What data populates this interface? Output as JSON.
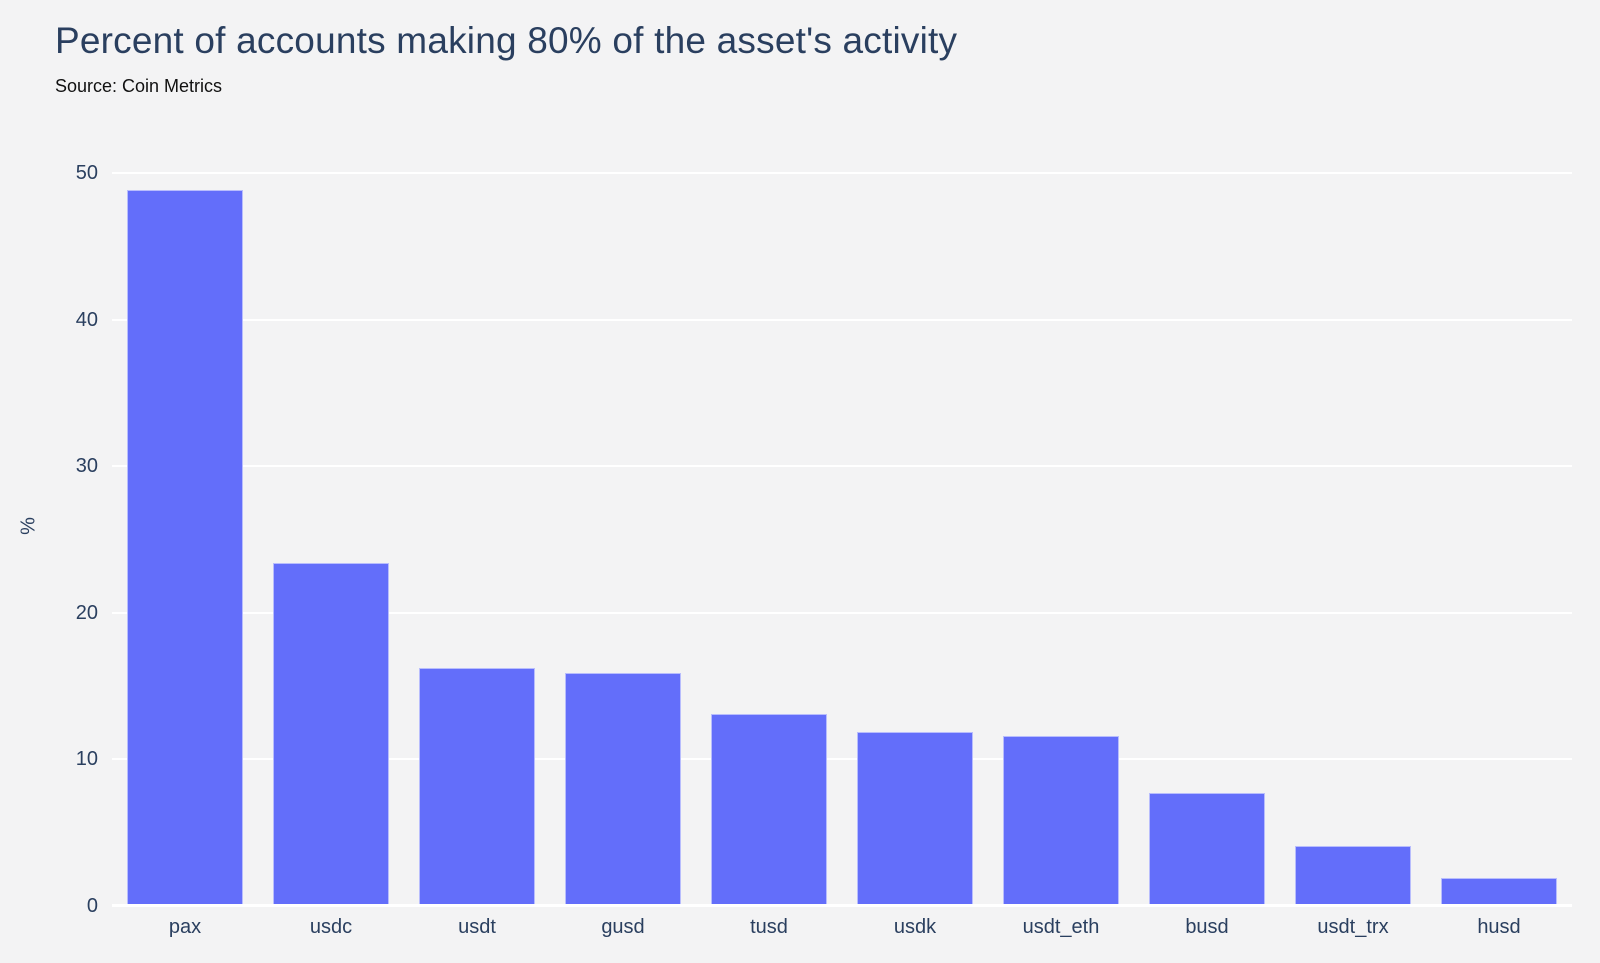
{
  "header": {
    "title": "Percent of accounts making 80% of the asset's activity",
    "source": "Source: Coin Metrics"
  },
  "chart_data": {
    "type": "bar",
    "title": "Percent of accounts making 80% of the asset's activity",
    "subtitle": "Source: Coin Metrics",
    "categories": [
      "pax",
      "usdc",
      "usdt",
      "gusd",
      "tusd",
      "usdk",
      "usdt_eth",
      "busd",
      "usdt_trx",
      "husd"
    ],
    "values": [
      48.8,
      23.4,
      16.2,
      15.9,
      13.1,
      11.9,
      11.6,
      7.7,
      4.1,
      1.9
    ],
    "xlabel": "",
    "ylabel": "%",
    "ylim": [
      0,
      51.9
    ],
    "yticks": [
      0,
      10,
      20,
      30,
      40,
      50
    ],
    "grid": true,
    "legend_position": "none",
    "bar_color": "#636efa",
    "bar_edge_color": "rgba(255,255,255,0.55)",
    "background_color": "#f3f3f4",
    "gridline_color": "#ffffff",
    "text_color": "#2a3f5f"
  }
}
